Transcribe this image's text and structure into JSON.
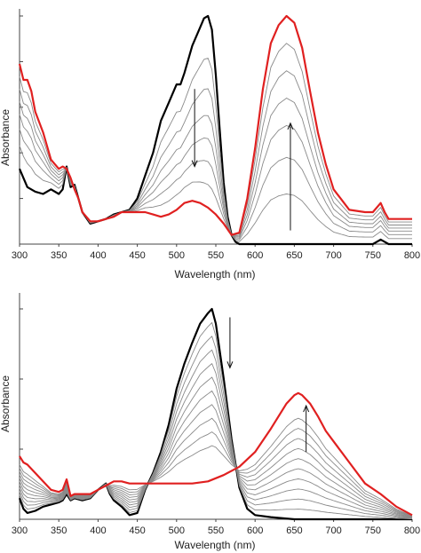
{
  "chart_data": [
    {
      "type": "line",
      "xlabel": "Wavelength (nm)",
      "ylabel": "Absorbance",
      "xlim": [
        300,
        800
      ],
      "ylim": [
        0,
        1
      ],
      "x_ticks": [
        "300",
        "350",
        "400",
        "450",
        "500",
        "550",
        "600",
        "650",
        "700",
        "750",
        "800"
      ],
      "y_tick_count": 6,
      "grid": false,
      "legend": "none",
      "annotations": [
        {
          "type": "arrow",
          "direction": "down",
          "x_nm": 523,
          "y_from": 0.68,
          "y_to": 0.34
        },
        {
          "type": "arrow",
          "direction": "up",
          "x_nm": 645,
          "y_from": 0.06,
          "y_to": 0.53
        }
      ],
      "series": [
        {
          "role": "initial",
          "color": "#000000",
          "x": [
            300,
            310,
            320,
            330,
            340,
            350,
            355,
            360,
            365,
            370,
            380,
            390,
            400,
            410,
            420,
            430,
            440,
            450,
            460,
            470,
            480,
            490,
            500,
            505,
            510,
            520,
            530,
            535,
            540,
            545,
            550,
            555,
            560,
            565,
            570,
            575,
            580,
            600,
            650,
            700,
            750,
            760,
            765,
            770,
            800
          ],
          "y": [
            0.33,
            0.25,
            0.23,
            0.22,
            0.24,
            0.22,
            0.24,
            0.34,
            0.25,
            0.26,
            0.14,
            0.09,
            0.1,
            0.11,
            0.13,
            0.14,
            0.15,
            0.2,
            0.3,
            0.4,
            0.54,
            0.62,
            0.7,
            0.7,
            0.75,
            0.87,
            0.95,
            0.99,
            1.0,
            0.94,
            0.74,
            0.5,
            0.27,
            0.12,
            0.04,
            0.01,
            0.0,
            0.0,
            0.0,
            0.0,
            0.0,
            0.02,
            0.01,
            0.0,
            0.0
          ]
        },
        {
          "role": "final",
          "color": "#e02020",
          "x": [
            300,
            305,
            310,
            315,
            320,
            330,
            340,
            350,
            355,
            360,
            365,
            370,
            375,
            380,
            390,
            400,
            410,
            420,
            430,
            440,
            450,
            460,
            470,
            480,
            490,
            500,
            510,
            520,
            530,
            540,
            550,
            560,
            570,
            580,
            590,
            600,
            610,
            620,
            630,
            640,
            650,
            660,
            670,
            680,
            690,
            700,
            720,
            740,
            750,
            760,
            765,
            770,
            780,
            800
          ],
          "y": [
            0.79,
            0.72,
            0.72,
            0.67,
            0.58,
            0.49,
            0.37,
            0.33,
            0.34,
            0.33,
            0.29,
            0.24,
            0.2,
            0.14,
            0.1,
            0.1,
            0.11,
            0.12,
            0.14,
            0.14,
            0.14,
            0.14,
            0.13,
            0.12,
            0.13,
            0.15,
            0.18,
            0.19,
            0.18,
            0.16,
            0.13,
            0.09,
            0.04,
            0.05,
            0.2,
            0.42,
            0.68,
            0.88,
            0.96,
            1.0,
            0.97,
            0.86,
            0.67,
            0.49,
            0.35,
            0.24,
            0.15,
            0.14,
            0.14,
            0.18,
            0.14,
            0.11,
            0.11,
            0.11
          ]
        },
        {
          "role": "intermediate",
          "color": "#8a8a8a",
          "x": [],
          "y": []
        },
        {
          "role": "intermediate",
          "color": "#8a8a8a",
          "x": [],
          "y": []
        },
        {
          "role": "intermediate",
          "color": "#8a8a8a",
          "x": [],
          "y": []
        },
        {
          "role": "intermediate",
          "color": "#8a8a8a",
          "x": [],
          "y": []
        },
        {
          "role": "intermediate",
          "color": "#8a8a8a",
          "x": [],
          "y": []
        },
        {
          "role": "intermediate",
          "color": "#8a8a8a",
          "x": [],
          "y": []
        }
      ],
      "interpolation": [
        0.22,
        0.38,
        0.52,
        0.64,
        0.76,
        0.88
      ]
    },
    {
      "type": "line",
      "xlabel": "Wavelength (nm)",
      "ylabel": "Absorbance",
      "xlim": [
        300,
        800
      ],
      "ylim": [
        0,
        1
      ],
      "x_ticks": [
        "300",
        "350",
        "400",
        "450",
        "500",
        "550",
        "600",
        "650",
        "700",
        "750",
        "800"
      ],
      "y_tick_count": 4,
      "grid": false,
      "legend": "none",
      "annotations": [
        {
          "type": "arrow",
          "direction": "down",
          "x_nm": 568,
          "y_from": 0.96,
          "y_to": 0.72
        },
        {
          "type": "arrow",
          "direction": "up",
          "x_nm": 665,
          "y_from": 0.32,
          "y_to": 0.54
        }
      ],
      "series": [
        {
          "role": "initial",
          "color": "#000000",
          "x": [
            300,
            305,
            310,
            320,
            330,
            340,
            350,
            355,
            360,
            365,
            370,
            380,
            390,
            400,
            410,
            415,
            420,
            430,
            440,
            450,
            460,
            470,
            480,
            490,
            500,
            510,
            520,
            530,
            540,
            545,
            550,
            560,
            570,
            580,
            590,
            600,
            620,
            650,
            700,
            750,
            800
          ],
          "y": [
            0.1,
            0.05,
            0.03,
            0.04,
            0.06,
            0.07,
            0.08,
            0.09,
            0.12,
            0.09,
            0.1,
            0.09,
            0.1,
            0.14,
            0.17,
            0.12,
            0.09,
            0.06,
            0.02,
            0.03,
            0.14,
            0.22,
            0.32,
            0.45,
            0.62,
            0.74,
            0.84,
            0.93,
            0.98,
            1.0,
            0.93,
            0.67,
            0.38,
            0.15,
            0.05,
            0.02,
            0.01,
            0.0,
            0.0,
            0.0,
            0.0
          ]
        },
        {
          "role": "final",
          "color": "#e02020",
          "x": [
            300,
            305,
            310,
            320,
            330,
            340,
            350,
            355,
            360,
            365,
            370,
            380,
            390,
            400,
            410,
            420,
            430,
            440,
            450,
            460,
            480,
            500,
            520,
            540,
            560,
            580,
            600,
            620,
            640,
            650,
            655,
            660,
            670,
            680,
            690,
            700,
            720,
            740,
            760,
            780,
            800
          ],
          "y": [
            0.3,
            0.27,
            0.26,
            0.22,
            0.18,
            0.14,
            0.13,
            0.14,
            0.19,
            0.11,
            0.12,
            0.12,
            0.12,
            0.14,
            0.16,
            0.18,
            0.18,
            0.17,
            0.17,
            0.17,
            0.17,
            0.17,
            0.17,
            0.18,
            0.21,
            0.25,
            0.32,
            0.43,
            0.55,
            0.59,
            0.6,
            0.59,
            0.55,
            0.49,
            0.42,
            0.37,
            0.27,
            0.17,
            0.12,
            0.06,
            0.02
          ]
        },
        {
          "role": "intermediate",
          "color": "#8a8a8a",
          "x": [],
          "y": []
        },
        {
          "role": "intermediate",
          "color": "#8a8a8a",
          "x": [],
          "y": []
        },
        {
          "role": "intermediate",
          "color": "#8a8a8a",
          "x": [],
          "y": []
        },
        {
          "role": "intermediate",
          "color": "#8a8a8a",
          "x": [],
          "y": []
        },
        {
          "role": "intermediate",
          "color": "#8a8a8a",
          "x": [],
          "y": []
        },
        {
          "role": "intermediate",
          "color": "#8a8a8a",
          "x": [],
          "y": []
        },
        {
          "role": "intermediate",
          "color": "#8a8a8a",
          "x": [],
          "y": []
        },
        {
          "role": "intermediate",
          "color": "#8a8a8a",
          "x": [],
          "y": []
        },
        {
          "role": "intermediate",
          "color": "#8a8a8a",
          "x": [],
          "y": []
        },
        {
          "role": "intermediate",
          "color": "#8a8a8a",
          "x": [],
          "y": []
        }
      ],
      "interpolation": [
        0.08,
        0.16,
        0.24,
        0.32,
        0.4,
        0.48,
        0.56,
        0.64,
        0.72,
        0.8
      ]
    }
  ]
}
